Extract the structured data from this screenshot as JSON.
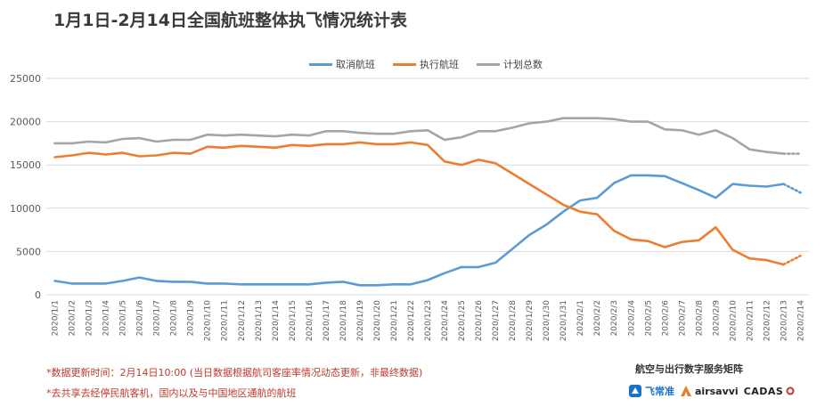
{
  "title": "1月1日-2月14日全国航班整体执飞情况统计表",
  "legend": [
    {
      "name": "取消航班",
      "color": "#5b9bd5"
    },
    {
      "name": "执行航班",
      "color": "#ed7d31"
    },
    {
      "name": "计划总数",
      "color": "#a5a5a5"
    }
  ],
  "footnotes": {
    "line1": "*数据更新时间：2月14日10:00 (当日数据根据航司客座率情况动态更新，非最终数据)",
    "line2": "*去共享去经停民航客机，国内以及与中国地区通航的航班"
  },
  "brand": {
    "title": "航空与出行数字服务矩阵",
    "logos": [
      {
        "name": "飞常准",
        "icon": "feichangzhun-logo-icon"
      },
      {
        "name": "airsavvi",
        "icon": "airsavvi-logo-icon"
      },
      {
        "name": "CADAS",
        "icon": "cadas-logo-icon"
      }
    ]
  },
  "chart_data": {
    "type": "line",
    "categories": [
      "2020/1/1",
      "2020/1/2",
      "2020/1/3",
      "2020/1/4",
      "2020/1/5",
      "2020/1/6",
      "2020/1/7",
      "2020/1/8",
      "2020/1/9",
      "2020/1/10",
      "2020/1/11",
      "2020/1/12",
      "2020/1/13",
      "2020/1/14",
      "2020/1/15",
      "2020/1/16",
      "2020/1/17",
      "2020/1/18",
      "2020/1/19",
      "2020/1/20",
      "2020/1/21",
      "2020/1/22",
      "2020/1/23",
      "2020/1/24",
      "2020/1/25",
      "2020/1/26",
      "2020/1/27",
      "2020/1/28",
      "2020/1/29",
      "2020/1/30",
      "2020/1/31",
      "2020/2/1",
      "2020/2/2",
      "2020/2/3",
      "2020/2/4",
      "2020/2/5",
      "2020/2/6",
      "2020/2/7",
      "2020/2/8",
      "2020/2/9",
      "2020/2/10",
      "2020/2/11",
      "2020/2/12",
      "2020/2/13",
      "2020/2/14"
    ],
    "ylim": [
      0,
      25000
    ],
    "yticks": [
      0,
      5000,
      10000,
      15000,
      20000,
      25000
    ],
    "grid": true,
    "legend_position": "top-center",
    "dashed_last_segment": true,
    "series": [
      {
        "name": "取消航班",
        "color": "#5b9bd5",
        "values": [
          1600,
          1300,
          1300,
          1300,
          1600,
          2000,
          1600,
          1500,
          1500,
          1300,
          1300,
          1200,
          1200,
          1200,
          1200,
          1200,
          1400,
          1500,
          1100,
          1100,
          1200,
          1200,
          1700,
          2500,
          3200,
          3200,
          3700,
          5300,
          6900,
          8100,
          9600,
          10900,
          11200,
          12900,
          13800,
          13800,
          13700,
          12900,
          12100,
          11200,
          12800,
          12600,
          12500,
          12800,
          11800
        ]
      },
      {
        "name": "执行航班",
        "color": "#ed7d31",
        "values": [
          15900,
          16100,
          16400,
          16200,
          16400,
          16000,
          16100,
          16400,
          16300,
          17100,
          17000,
          17200,
          17100,
          17000,
          17300,
          17200,
          17400,
          17400,
          17600,
          17400,
          17400,
          17600,
          17300,
          15400,
          15000,
          15600,
          15200,
          14000,
          12800,
          11600,
          10400,
          9600,
          9300,
          7400,
          6400,
          6200,
          5500,
          6100,
          6300,
          7800,
          5200,
          4200,
          4000,
          3500,
          4500
        ]
      },
      {
        "name": "计划总数",
        "color": "#a5a5a5",
        "values": [
          17500,
          17500,
          17700,
          17600,
          18000,
          18100,
          17700,
          17900,
          17900,
          18500,
          18400,
          18500,
          18400,
          18300,
          18500,
          18400,
          18900,
          18900,
          18700,
          18600,
          18600,
          18900,
          19000,
          17900,
          18200,
          18900,
          18900,
          19300,
          19800,
          20000,
          20400,
          20400,
          20400,
          20300,
          20000,
          20000,
          19100,
          19000,
          18500,
          19000,
          18100,
          16800,
          16500,
          16300,
          16300
        ]
      }
    ]
  }
}
